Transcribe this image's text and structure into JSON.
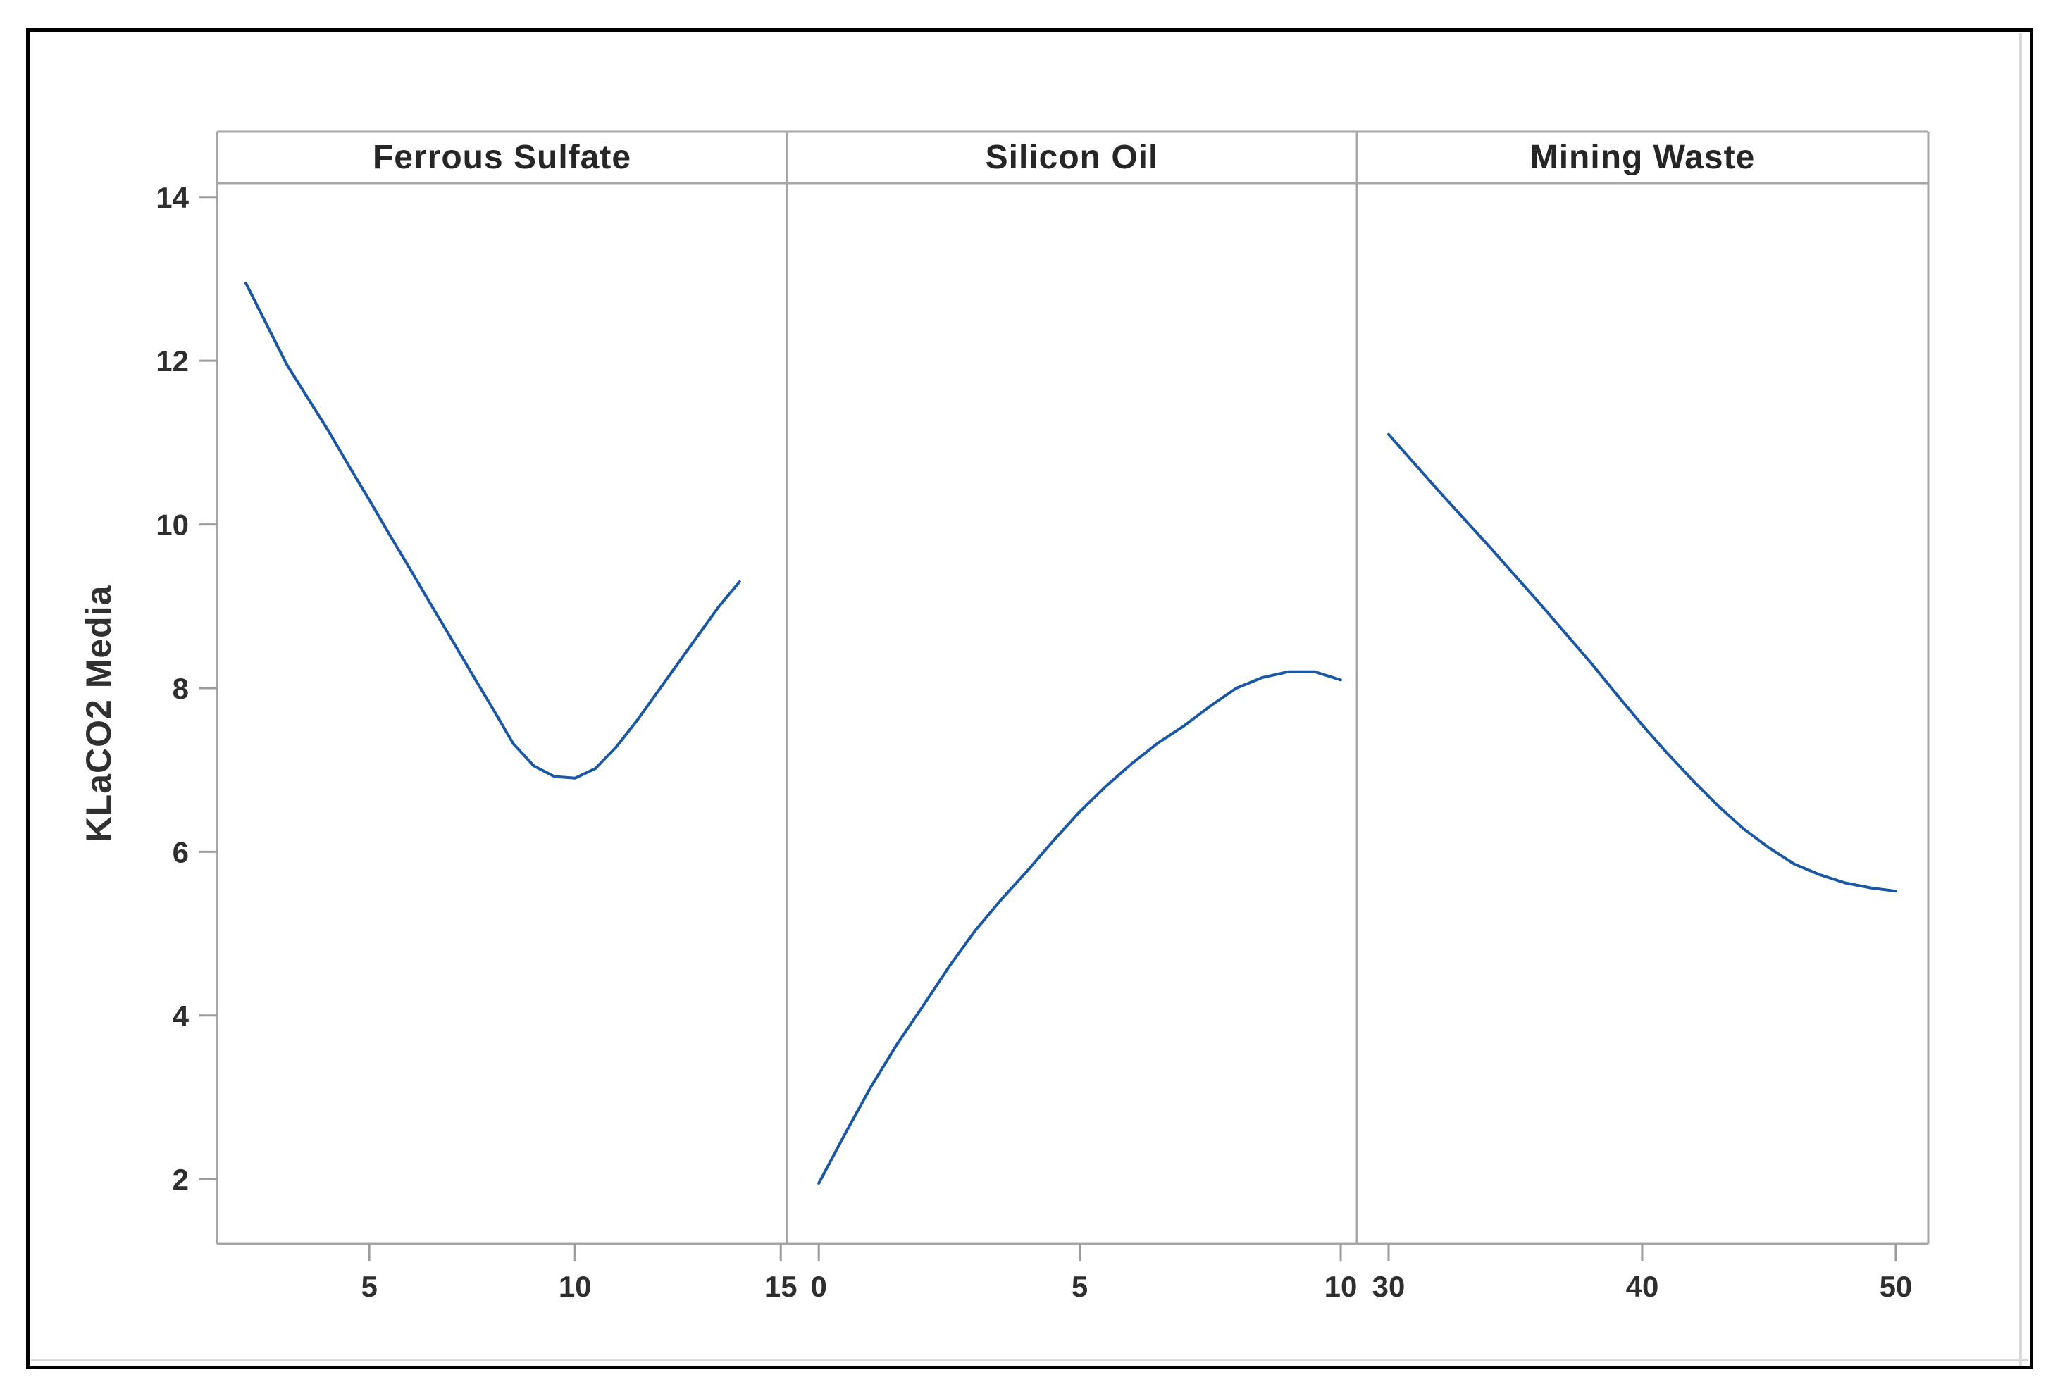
{
  "chart_data": {
    "type": "line",
    "title": "",
    "ylabel": "KLaCO2 Media",
    "xlabel": "",
    "grid": false,
    "legend": "none",
    "y_ticks": [
      14,
      12,
      10,
      8,
      6,
      4,
      2
    ],
    "ylim": [
      1.21,
      14.17
    ],
    "line_color": "#1A57A4",
    "frame_color": "#A6A6A6",
    "tick_color": "#9B9B9B",
    "text_color": "#2E2E2E",
    "edge_shadow_color": "#D9D9D9",
    "panels": [
      {
        "label": "Ferrous Sulfate",
        "x_ticks": [
          5,
          10,
          15
        ],
        "xlim": [
          1.3,
          15.15
        ],
        "x": [
          2,
          2.5,
          3,
          3.5,
          4,
          4.5,
          5,
          5.5,
          6,
          6.5,
          7,
          7.5,
          8,
          8.5,
          9,
          9.5,
          10,
          10.5,
          11,
          11.5,
          12,
          12.5,
          13,
          13.5,
          14
        ],
        "y": [
          12.95,
          12.45,
          11.95,
          11.55,
          11.15,
          10.72,
          10.3,
          9.87,
          9.45,
          9.02,
          8.6,
          8.17,
          7.75,
          7.32,
          7.05,
          6.92,
          6.9,
          7.02,
          7.28,
          7.6,
          7.95,
          8.3,
          8.65,
          9.0,
          9.3
        ]
      },
      {
        "label": "Silicon Oil",
        "x_ticks": [
          0,
          5,
          10
        ],
        "xlim": [
          -0.61,
          10.31
        ],
        "x": [
          0,
          0.5,
          1,
          1.5,
          2,
          2.5,
          3,
          3.5,
          4,
          4.5,
          5,
          5.5,
          6,
          6.5,
          7,
          7.5,
          8,
          8.5,
          9,
          9.5,
          10
        ],
        "y": [
          1.95,
          2.55,
          3.13,
          3.65,
          4.12,
          4.6,
          5.04,
          5.42,
          5.77,
          6.14,
          6.49,
          6.8,
          7.08,
          7.33,
          7.54,
          7.78,
          8.0,
          8.13,
          8.2,
          8.2,
          8.1
        ]
      },
      {
        "label": "Mining Waste",
        "x_ticks": [
          30,
          40,
          50
        ],
        "xlim": [
          28.75,
          51.28
        ],
        "x": [
          30,
          31,
          32,
          33,
          34,
          35,
          36,
          37,
          38,
          39,
          40,
          41,
          42,
          43,
          44,
          45,
          46,
          47,
          48,
          49,
          50
        ],
        "y": [
          11.1,
          10.75,
          10.4,
          10.06,
          9.72,
          9.37,
          9.02,
          8.66,
          8.3,
          7.92,
          7.55,
          7.2,
          6.87,
          6.56,
          6.28,
          6.05,
          5.85,
          5.72,
          5.62,
          5.56,
          5.52
        ]
      }
    ]
  }
}
